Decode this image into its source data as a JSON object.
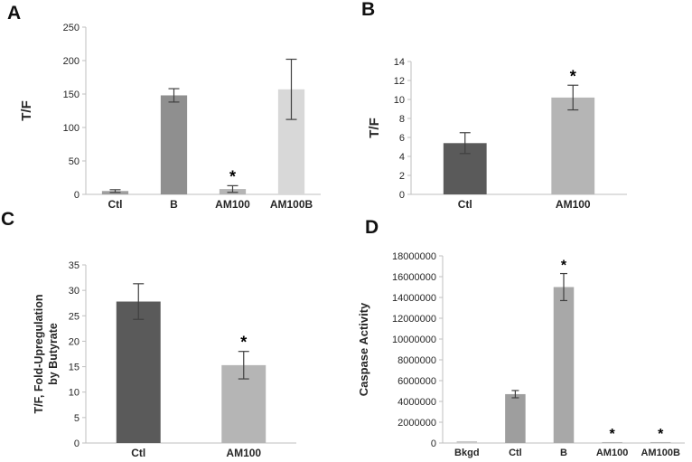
{
  "figure": {
    "background": "#ffffff",
    "text_color": "#262626",
    "axis_color": "#bfbfbf",
    "error_bar_color": "#404040",
    "panels": [
      {
        "letter": "A"
      },
      {
        "letter": "B"
      },
      {
        "letter": "C"
      },
      {
        "letter": "D"
      }
    ]
  },
  "chart_data": [
    {
      "panel": "A",
      "type": "bar",
      "title": "",
      "xlabel": "",
      "ylabel": "T/F",
      "categories": [
        "Ctl",
        "B",
        "AM100",
        "AM100B"
      ],
      "values": [
        5,
        148,
        8,
        157
      ],
      "errors": [
        2,
        10,
        5,
        45
      ],
      "significant": [
        false,
        false,
        true,
        false
      ],
      "significance_marker": "*",
      "bar_colors": [
        "#9e9e9e",
        "#8f8f8f",
        "#b5b5b5",
        "#d8d8d8"
      ],
      "ylim": [
        0,
        250
      ],
      "yticks": [
        0,
        50,
        100,
        150,
        200,
        250
      ],
      "grid": false,
      "legend": false
    },
    {
      "panel": "B",
      "type": "bar",
      "title": "",
      "xlabel": "",
      "ylabel": "T/F",
      "categories": [
        "Ctl",
        "AM100"
      ],
      "values": [
        5.4,
        10.2
      ],
      "errors": [
        1.1,
        1.3
      ],
      "significant": [
        false,
        true
      ],
      "significance_marker": "*",
      "bar_colors": [
        "#5a5a5a",
        "#b5b5b5"
      ],
      "ylim": [
        0,
        14
      ],
      "yticks": [
        0,
        2,
        4,
        6,
        8,
        10,
        12,
        14
      ],
      "grid": false,
      "legend": false
    },
    {
      "panel": "C",
      "type": "bar",
      "title": "",
      "xlabel": "",
      "ylabel": [
        "T/F, Fold-Upregulation",
        "by Butyrate"
      ],
      "categories": [
        "Ctl",
        "AM100"
      ],
      "values": [
        27.8,
        15.3
      ],
      "errors": [
        3.5,
        2.7
      ],
      "significant": [
        false,
        true
      ],
      "significance_marker": "*",
      "bar_colors": [
        "#5a5a5a",
        "#b5b5b5"
      ],
      "ylim": [
        0,
        35
      ],
      "yticks": [
        0,
        5,
        10,
        15,
        20,
        25,
        30,
        35
      ],
      "grid": false,
      "legend": false
    },
    {
      "panel": "D",
      "type": "bar",
      "title": "",
      "xlabel": "",
      "ylabel": "Caspase Activity",
      "categories": [
        "Bkgd",
        "Ctl",
        "B",
        "AM100",
        "AM100B"
      ],
      "values": [
        175000,
        4700000,
        15000000,
        90000,
        90000
      ],
      "errors": [
        0,
        350000,
        1300000,
        0,
        0
      ],
      "significant": [
        false,
        false,
        true,
        true,
        true
      ],
      "significance_marker": "*",
      "bar_colors": [
        "#c9c9c9",
        "#9e9e9e",
        "#a8a8a8",
        "#b5b5b5",
        "#b5b5b5"
      ],
      "ylim": [
        0,
        18000000
      ],
      "yticks": [
        0,
        2000000,
        4000000,
        6000000,
        8000000,
        10000000,
        12000000,
        14000000,
        16000000,
        18000000
      ],
      "grid": false,
      "legend": false
    }
  ]
}
